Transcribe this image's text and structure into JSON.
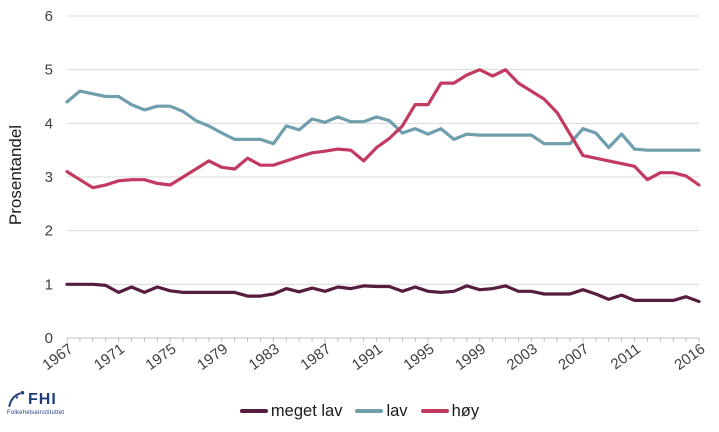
{
  "chart_data": {
    "type": "line",
    "title": "",
    "xlabel": "",
    "ylabel": "Prosentandel",
    "ylim": [
      0,
      6
    ],
    "yticks": [
      0,
      1,
      2,
      3,
      4,
      5,
      6
    ],
    "xtick_labels": [
      "1967",
      "1971",
      "1975",
      "1979",
      "1983",
      "1987",
      "1991",
      "1995",
      "1999",
      "2003",
      "2007",
      "2011",
      "2016"
    ],
    "grid": "horizontal",
    "legend_position": "bottom",
    "colors": {
      "grid": "#d9d9d9",
      "axis": "#bfbfbf",
      "text": "#404040"
    },
    "x": [
      1967,
      1968,
      1969,
      1970,
      1971,
      1972,
      1973,
      1974,
      1975,
      1976,
      1977,
      1978,
      1979,
      1980,
      1981,
      1982,
      1983,
      1984,
      1985,
      1986,
      1987,
      1988,
      1989,
      1990,
      1991,
      1992,
      1993,
      1994,
      1995,
      1996,
      1997,
      1998,
      1999,
      2000,
      2001,
      2002,
      2003,
      2004,
      2005,
      2006,
      2007,
      2008,
      2009,
      2010,
      2011,
      2012,
      2013,
      2014,
      2015,
      2016
    ],
    "series": [
      {
        "name": "meget lav",
        "color": "#571d41",
        "values": [
          1.0,
          1.0,
          1.0,
          0.98,
          0.85,
          0.95,
          0.85,
          0.95,
          0.88,
          0.85,
          0.85,
          0.85,
          0.85,
          0.85,
          0.78,
          0.78,
          0.82,
          0.92,
          0.86,
          0.93,
          0.87,
          0.95,
          0.92,
          0.97,
          0.96,
          0.96,
          0.87,
          0.95,
          0.87,
          0.85,
          0.87,
          0.97,
          0.9,
          0.92,
          0.97,
          0.87,
          0.87,
          0.82,
          0.82,
          0.82,
          0.9,
          0.82,
          0.72,
          0.8,
          0.7,
          0.7,
          0.7,
          0.7,
          0.77,
          0.68
        ]
      },
      {
        "name": "lav",
        "color": "#6f9fad",
        "values": [
          4.4,
          4.6,
          4.55,
          4.5,
          4.5,
          4.35,
          4.25,
          4.32,
          4.32,
          4.22,
          4.05,
          3.95,
          3.82,
          3.7,
          3.7,
          3.7,
          3.62,
          3.95,
          3.88,
          4.08,
          4.02,
          4.12,
          4.03,
          4.03,
          4.12,
          4.05,
          3.82,
          3.9,
          3.8,
          3.9,
          3.7,
          3.8,
          3.78,
          3.78,
          3.78,
          3.78,
          3.78,
          3.62,
          3.62,
          3.62,
          3.9,
          3.82,
          3.55,
          3.8,
          3.52,
          3.5,
          3.5,
          3.5,
          3.5,
          3.5
        ]
      },
      {
        "name": "høy",
        "color": "#c23a60",
        "values": [
          3.1,
          2.95,
          2.8,
          2.85,
          2.93,
          2.95,
          2.95,
          2.88,
          2.85,
          3.0,
          3.15,
          3.3,
          3.18,
          3.15,
          3.35,
          3.22,
          3.22,
          3.3,
          3.38,
          3.45,
          3.48,
          3.52,
          3.5,
          3.3,
          3.55,
          3.72,
          3.95,
          4.35,
          4.35,
          4.75,
          4.75,
          4.9,
          5.0,
          4.88,
          5.0,
          4.75,
          4.6,
          4.45,
          4.2,
          3.8,
          3.4,
          3.35,
          3.3,
          3.25,
          3.2,
          2.95,
          3.08,
          3.08,
          3.02,
          2.85
        ]
      }
    ]
  },
  "logo": {
    "text": "FHI",
    "subtext": "Folkehelseinstituttet",
    "color": "#1f3d7c"
  }
}
